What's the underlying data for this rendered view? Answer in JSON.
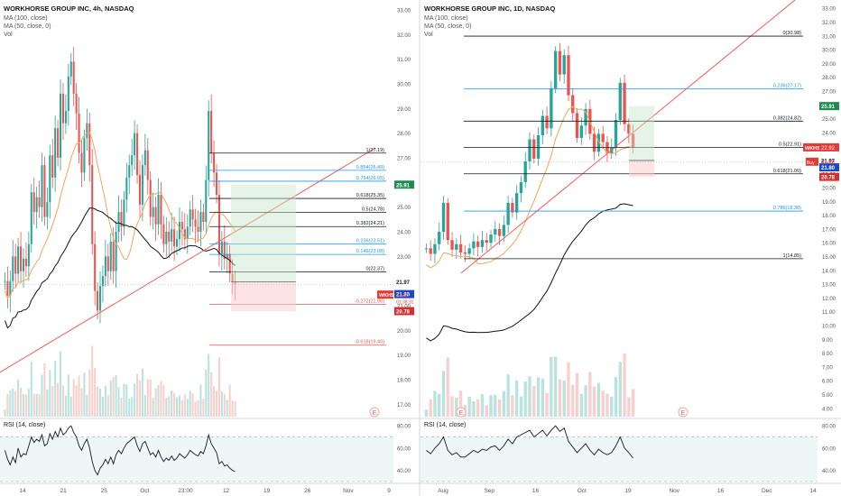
{
  "panels": [
    {
      "header": {
        "title": "WORKHORSE GROUP INC, 4h, NASDAQ",
        "ma1": "MA (100, close)",
        "ma2": "MA (50, close, 0)",
        "vol": "Vol"
      },
      "rsi_label": "RSI (14, close)",
      "price_ticks": [
        "33.00",
        "32.00",
        "31.00",
        "30.00",
        "29.00",
        "28.00",
        "27.00",
        "26.00",
        "25.00",
        "24.00",
        "23.00",
        "22.00",
        "21.00",
        "20.00",
        "19.00",
        "18.00",
        "17.00"
      ],
      "rsi_ticks": [
        "80.00",
        "60.00",
        "40.00"
      ],
      "time_ticks": [
        "14",
        "21",
        "25",
        "Oct",
        "23:00",
        "12",
        "19",
        "26",
        "Nov",
        "9"
      ],
      "fib_labels": [
        "1(27.19)",
        "0.854(26.49)",
        "0.764(26.05)",
        "0.618(25.35)",
        "0.5(24.78)",
        "0.382(24.21)",
        "0.236(23.51)",
        "0.146(23.08)",
        "0(22.37)",
        "-0.272(21.06)",
        "-0.618(19.40)"
      ],
      "price_tags": {
        "target": "25.91",
        "last": "21.97",
        "wkhs": "WKHS",
        "wkhs_val": "21.88",
        "wkhs_time": "01:38:31",
        "ma": "21.80",
        "stop": "20.78"
      },
      "chart_data": {
        "type": "candlestick",
        "title": "WORKHORSE GROUP INC, 4h, NASDAQ",
        "ylim": [
          16.5,
          33.4
        ],
        "rsi_ylim": [
          30,
          85
        ],
        "indicators": [
          "MA (100, close)",
          "MA (50, close, 0)",
          "Vol",
          "RSI (14, close)"
        ],
        "fib_levels": [
          {
            "ratio": 1,
            "price": 27.19
          },
          {
            "ratio": 0.854,
            "price": 26.49
          },
          {
            "ratio": 0.764,
            "price": 26.05
          },
          {
            "ratio": 0.618,
            "price": 25.35
          },
          {
            "ratio": 0.5,
            "price": 24.78
          },
          {
            "ratio": 0.382,
            "price": 24.21
          },
          {
            "ratio": 0.236,
            "price": 23.51
          },
          {
            "ratio": 0.146,
            "price": 23.08
          },
          {
            "ratio": 0,
            "price": 22.37
          },
          {
            "ratio": -0.272,
            "price": 21.06
          },
          {
            "ratio": -0.618,
            "price": 19.4
          }
        ],
        "position": {
          "entry": 21.97,
          "target": 25.91,
          "stop": 20.78
        },
        "series": [
          {
            "name": "price",
            "values": [
              22.0,
              21.4,
              22.0,
              23.0,
              22.3,
              23.4,
              22.4,
              22.9,
              22.6,
              23.5,
              25.6,
              24.8,
              25.4,
              25.0,
              26.7,
              24.6,
              25.2,
              27.1,
              26.2,
              28.2,
              27.0,
              29.6,
              28.4,
              28.9,
              30.3,
              30.9,
              29.6,
              28.8,
              27.2,
              26.4,
              27.8,
              28.4,
              26.7,
              23.5,
              21.6,
              20.8,
              21.8,
              22.2,
              23.0,
              22.4,
              23.6,
              22.4,
              24.0,
              24.8,
              24.2,
              25.3,
              26.2,
              26.7,
              27.1,
              28.0,
              26.3,
              25.1,
              26.7,
              27.3,
              26.1,
              24.6,
              25.0,
              24.3,
              25.5,
              24.3,
              23.5,
              24.0,
              23.6,
              24.1,
              23.4,
              23.7,
              24.4,
              24.1,
              23.7,
              24.2,
              24.9,
              24.5,
              24.2,
              24.0,
              24.8,
              24.4,
              26.1,
              28.9,
              27.2,
              26.4,
              25.5,
              23.1,
              23.6,
              22.9,
              23.1,
              22.3,
              21.98,
              21.88
            ]
          },
          {
            "name": "rsi",
            "values": [
              58,
              50,
              45,
              52,
              47,
              60,
              52,
              55,
              54,
              62,
              70,
              65,
              68,
              66,
              72,
              62,
              64,
              73,
              68,
              75,
              70,
              78,
              72,
              74,
              78,
              80,
              74,
              70,
              62,
              58,
              64,
              68,
              60,
              48,
              40,
              36,
              42,
              45,
              50,
              46,
              52,
              46,
              54,
              58,
              55,
              60,
              64,
              66,
              68,
              70,
              62,
              57,
              64,
              66,
              60,
              54,
              56,
              52,
              58,
              52,
              48,
              51,
              49,
              53,
              49,
              51,
              55,
              53,
              51,
              54,
              58,
              56,
              54,
              53,
              57,
              55,
              62,
              72,
              64,
              60,
              56,
              46,
              48,
              44,
              45,
              42,
              40,
              39
            ]
          }
        ]
      }
    },
    {
      "header": {
        "title": "WORKHORSE GROUP INC, 1D, NASDAQ",
        "ma1": "MA (100, close)",
        "ma2": "MA (50, close, 0)",
        "vol": "Vol"
      },
      "rsi_label": "RSI (14, close)",
      "price_ticks": [
        "33.00",
        "32.00",
        "31.00",
        "30.00",
        "29.00",
        "28.00",
        "27.00",
        "26.00",
        "25.00",
        "24.00",
        "23.00",
        "22.00",
        "21.00",
        "20.00",
        "19.00",
        "18.00",
        "17.00",
        "16.00",
        "15.00",
        "14.00",
        "13.00",
        "12.00",
        "11.00",
        "10.00",
        "9.00",
        "8.00",
        "7.00",
        "6.00",
        "5.00",
        "4.00"
      ],
      "rsi_ticks": [
        "80.00",
        "60.00",
        "40.00"
      ],
      "time_ticks": [
        "Aug",
        "Sep",
        "16",
        "Oct",
        "19",
        "Nov",
        "16",
        "Dec",
        "14"
      ],
      "fib_labels": [
        "0(30.98)",
        "0.236(27.17)",
        "0.382(24.82)",
        "0.5(22.91)",
        "0.618(21.00)",
        "0.786(18.30)",
        "1(14.85)"
      ],
      "price_tags": {
        "target": "25.91",
        "wkhs": "WKHS",
        "wkhs_val": "22.92",
        "last": "21.97",
        "buy": "Buy",
        "buy_val": "21.88",
        "ma": "21.80",
        "stop": "20.78"
      },
      "chart_data": {
        "type": "candlestick",
        "title": "WORKHORSE GROUP INC, 1D, NASDAQ",
        "ylim": [
          3.4,
          33.6
        ],
        "rsi_ylim": [
          30,
          85
        ],
        "indicators": [
          "MA (100, close)",
          "MA (50, close, 0)",
          "Vol",
          "RSI (14, close)"
        ],
        "fib_levels": [
          {
            "ratio": 0,
            "price": 30.98
          },
          {
            "ratio": 0.236,
            "price": 27.17
          },
          {
            "ratio": 0.382,
            "price": 24.82
          },
          {
            "ratio": 0.5,
            "price": 22.91
          },
          {
            "ratio": 0.618,
            "price": 21.0
          },
          {
            "ratio": 0.786,
            "price": 18.3
          },
          {
            "ratio": 1,
            "price": 14.85
          }
        ],
        "position": {
          "entry": 21.97,
          "target": 25.91,
          "stop": 20.78
        },
        "series": [
          {
            "name": "price",
            "values": [
              15.6,
              15.2,
              15.9,
              16.8,
              18.9,
              16.2,
              15.5,
              15.9,
              15.3,
              15.2,
              15.6,
              16.1,
              15.7,
              16.2,
              16.0,
              16.6,
              17.0,
              16.5,
              17.3,
              18.9,
              18.2,
              19.6,
              20.4,
              21.9,
              23.5,
              22.1,
              23.8,
              25.2,
              24.3,
              27.2,
              29.9,
              28.2,
              29.6,
              26.7,
              25.4,
              23.6,
              24.5,
              25.7,
              23.9,
              22.6,
              23.9,
              23.3,
              22.5,
              22.9,
              24.9,
              27.6,
              24.6,
              23.9,
              22.92
            ]
          },
          {
            "name": "rsi",
            "values": [
              58,
              55,
              60,
              64,
              70,
              58,
              54,
              56,
              52,
              52,
              55,
              58,
              56,
              59,
              58,
              61,
              62,
              58,
              62,
              68,
              64,
              70,
              72,
              74,
              76,
              70,
              73,
              76,
              71,
              76,
              80,
              75,
              78,
              66,
              61,
              56,
              60,
              64,
              58,
              54,
              59,
              56,
              54,
              56,
              62,
              70,
              60,
              56,
              51
            ]
          }
        ]
      }
    }
  ]
}
